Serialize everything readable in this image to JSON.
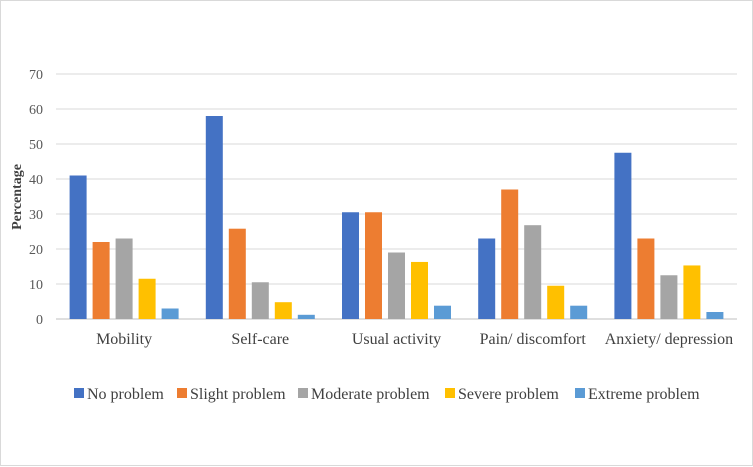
{
  "chart_data": {
    "type": "bar",
    "categories": [
      "Mobility",
      "Self-care",
      "Usual activity",
      "Pain/ discomfort",
      "Anxiety/ depression"
    ],
    "series": [
      {
        "name": "No problem",
        "color": "#4472C4",
        "values": [
          41,
          58,
          30.5,
          23,
          47.5
        ]
      },
      {
        "name": "Slight problem",
        "color": "#ED7D31",
        "values": [
          22,
          25.8,
          30.5,
          37,
          23
        ]
      },
      {
        "name": "Moderate problem",
        "color": "#A5A5A5",
        "values": [
          23,
          10.5,
          19,
          26.8,
          12.5
        ]
      },
      {
        "name": "Severe problem",
        "color": "#FFC000",
        "values": [
          11.5,
          4.8,
          16.3,
          9.5,
          15.3
        ]
      },
      {
        "name": "Extreme problem",
        "color": "#5B9BD5",
        "values": [
          3,
          1.2,
          3.8,
          3.8,
          2
        ]
      }
    ],
    "title": "",
    "xlabel": "",
    "ylabel": "Percentage",
    "ylim": [
      0,
      70
    ],
    "yticks": [
      0,
      10,
      20,
      30,
      40,
      50,
      60,
      70
    ],
    "grid": true,
    "legend": "bottom"
  }
}
